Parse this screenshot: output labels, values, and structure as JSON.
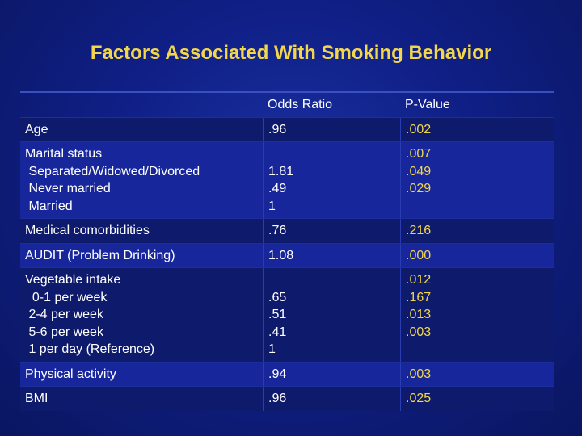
{
  "title": "Factors Associated With Smoking Behavior",
  "table": {
    "headers": [
      "",
      "Odds Ratio",
      "P-Value"
    ],
    "rows": [
      {
        "label": [
          "Age"
        ],
        "or": [
          ".96"
        ],
        "p": [
          ".002"
        ]
      },
      {
        "label": [
          "Marital status",
          " Separated/Widowed/Divorced",
          " Never married",
          " Married"
        ],
        "or": [
          "1.81",
          ".49",
          "1"
        ],
        "p": [
          ".007",
          ".049",
          ".029"
        ]
      },
      {
        "label": [
          "Medical comorbidities"
        ],
        "or": [
          ".76"
        ],
        "p": [
          ".216"
        ]
      },
      {
        "label": [
          "AUDIT (Problem Drinking)"
        ],
        "or": [
          "1.08"
        ],
        "p": [
          ".000"
        ]
      },
      {
        "label": [
          "Vegetable intake",
          "  0-1 per week",
          " 2-4 per week",
          " 5-6 per week",
          " 1 per day (Reference)"
        ],
        "or": [
          ".65",
          ".51",
          ".41",
          "1"
        ],
        "p": [
          ".012",
          ".167",
          ".013",
          ".003"
        ]
      },
      {
        "label": [
          "Physical activity"
        ],
        "or": [
          ".94"
        ],
        "p": [
          ".003"
        ]
      },
      {
        "label": [
          "BMI"
        ],
        "or": [
          ".96"
        ],
        "p": [
          ".025"
        ]
      }
    ]
  }
}
